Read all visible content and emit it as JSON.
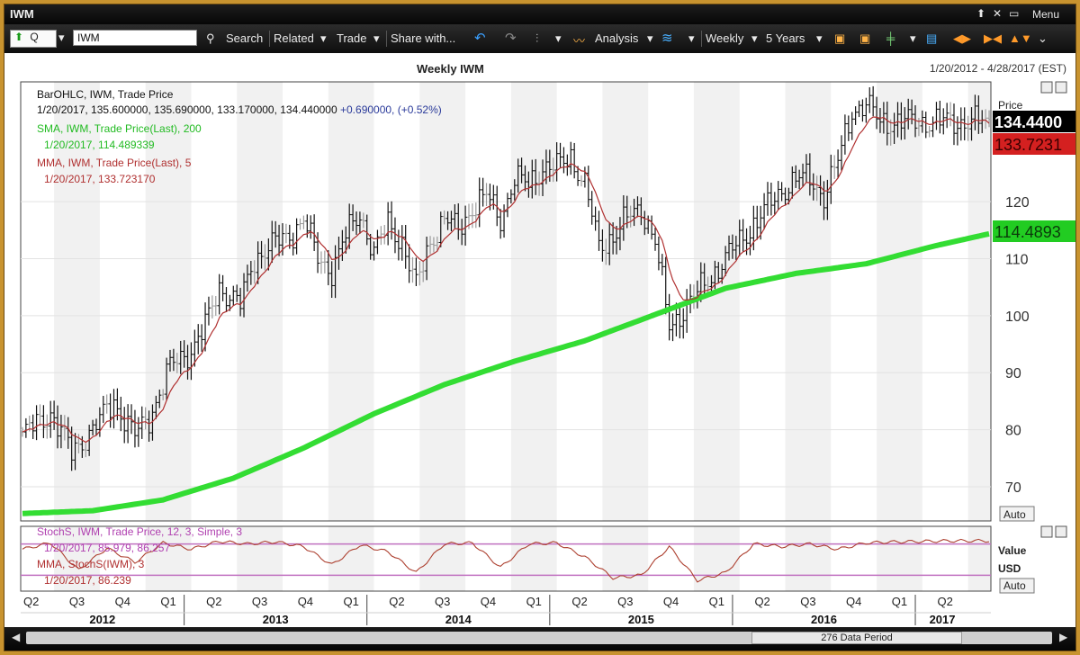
{
  "window": {
    "title": "IWM",
    "menu_label": "Menu"
  },
  "toolbar": {
    "symbol": "IWM",
    "symbol_mode": "Q",
    "search": "Search",
    "related": "Related",
    "trade": "Trade",
    "share": "Share with...",
    "analysis": "Analysis",
    "interval": "Weekly",
    "range": "5 Years"
  },
  "header": {
    "title": "Weekly IWM",
    "date_range": "1/20/2012 - 4/28/2017 (EST)"
  },
  "legend": {
    "main_title": "BarOHLC, IWM, Trade Price",
    "main_values": "1/20/2017, 135.600000, 135.690000, 133.170000, 134.440000",
    "main_change": "+0.690000, (+0.52%)",
    "sma_title": "SMA, IWM, Trade Price(Last), 200",
    "sma_value": "1/20/2017, 114.489339",
    "mma_title": "MMA, IWM, Trade Price(Last), 5",
    "mma_value": "1/20/2017, 133.723170",
    "stoch_title": "StochS, IWM, Trade Price, 12, 3, Simple, 3",
    "stoch_value": "1/20/2017, 85.979, 86.257",
    "stoch_mma_title": "MMA, StochS(IWM), 3",
    "stoch_mma_value": "1/20/2017, 86.239"
  },
  "price_panel": {
    "label": "Price",
    "auto_label": "Auto",
    "last_price_tag": "134.4400",
    "mma_tag": "133.7231",
    "sma_tag": "114.4893"
  },
  "stoch_panel": {
    "value_label": "Value",
    "unit_label": "USD",
    "auto_label": "Auto"
  },
  "footer": {
    "period_label": "276 Data Period"
  },
  "colors": {
    "bars": "#111111",
    "bars_doji": "#9a9a9a",
    "sma": "#33dd33",
    "mma": "#b03030",
    "stoch": "#ad4030",
    "stoch_band": "#c070c0",
    "last_tag": "#000000",
    "mma_tag": "#d42020",
    "sma_tag": "#22cc22"
  },
  "chart_data": {
    "type": "line",
    "title": "Weekly IWM",
    "xlabel": "",
    "ylabel": "Price",
    "ylim": [
      64,
      141
    ],
    "yticks": [
      70,
      80,
      90,
      100,
      110,
      120
    ],
    "quarter_labels": [
      "Q2",
      "Q3",
      "Q4",
      "Q1",
      "Q2",
      "Q3",
      "Q4",
      "Q1",
      "Q2",
      "Q3",
      "Q4",
      "Q1",
      "Q2",
      "Q3",
      "Q4",
      "Q1",
      "Q2",
      "Q3",
      "Q4",
      "Q1",
      "Q2"
    ],
    "year_labels": [
      "2012",
      "2013",
      "2014",
      "2015",
      "2016",
      "2017"
    ],
    "price_anchors": {
      "t": [
        0,
        8,
        14,
        20,
        26,
        32,
        36,
        42,
        48,
        52,
        56,
        62,
        66,
        70,
        76,
        80,
        84,
        88,
        92,
        96,
        100,
        104,
        108,
        112,
        116,
        120,
        124,
        128,
        132,
        136,
        140,
        144,
        148,
        152,
        156,
        160,
        164,
        168,
        172,
        176,
        180,
        184,
        188,
        192,
        196,
        200,
        204,
        208,
        212,
        216,
        220,
        224,
        228,
        232,
        236,
        240,
        244,
        248,
        252,
        256,
        258,
        260,
        264,
        268,
        272,
        276
      ],
      "close": [
        79,
        83,
        76,
        80,
        85,
        79,
        82,
        91,
        94,
        98,
        105,
        102,
        110,
        112,
        114,
        117,
        110,
        108,
        114,
        118,
        111,
        116,
        113,
        105,
        113,
        117,
        115,
        119,
        121,
        117,
        124,
        123,
        126,
        126,
        128,
        123,
        112,
        114,
        117,
        119,
        113,
        98,
        101,
        104,
        107,
        110,
        113,
        116,
        119,
        122,
        124,
        124,
        121,
        127,
        136,
        137,
        134,
        134,
        134,
        134,
        134,
        134,
        134,
        134,
        134,
        134
      ]
    },
    "series": [
      {
        "name": "BarOHLC, IWM, Trade Price",
        "last": 134.44
      },
      {
        "name": "SMA, IWM, Trade Price(Last), 200",
        "start": 65.3,
        "end": 114.49,
        "anchors_t": [
          0,
          20,
          40,
          60,
          80,
          100,
          120,
          140,
          160,
          180,
          200,
          220,
          240,
          260,
          276
        ],
        "anchors_v": [
          65.3,
          65.8,
          67.7,
          71.5,
          76.8,
          82.8,
          87.9,
          92.0,
          95.6,
          100.2,
          104.8,
          107.4,
          109.1,
          112.3,
          114.49
        ]
      },
      {
        "name": "MMA, IWM, Trade Price(Last), 5",
        "last": 133.72
      }
    ],
    "stochastic": {
      "ylim": [
        0,
        100
      ],
      "bands": [
        80,
        20
      ],
      "anchors_t": [
        0,
        8,
        16,
        24,
        32,
        40,
        48,
        56,
        64,
        72,
        80,
        88,
        96,
        104,
        112,
        120,
        128,
        136,
        144,
        152,
        160,
        168,
        176,
        184,
        192,
        200,
        208,
        216,
        224,
        232,
        240,
        248,
        256,
        264,
        276
      ],
      "anchors_v": [
        70,
        82,
        30,
        72,
        45,
        82,
        70,
        85,
        80,
        84,
        75,
        40,
        78,
        65,
        25,
        80,
        82,
        35,
        80,
        82,
        55,
        15,
        20,
        75,
        10,
        25,
        80,
        75,
        80,
        70,
        82,
        84,
        85,
        86,
        86
      ]
    }
  }
}
